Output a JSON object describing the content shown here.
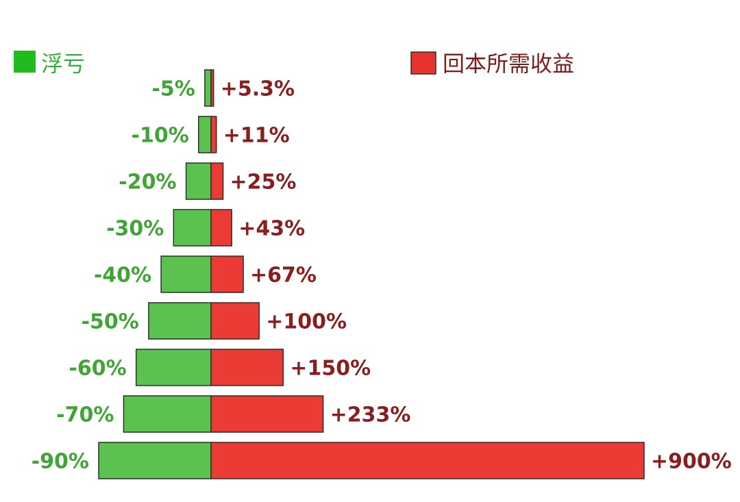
{
  "legend": {
    "loss_label": "浮亏",
    "gain_label": "回本所需收益"
  },
  "colors": {
    "loss_fill": "#5cc24f",
    "gain_fill": "#ec3b34",
    "bar_stroke": "#2d2d2d",
    "loss_text": "#3fa535",
    "gain_text": "#8a1e1e",
    "loss_legend_text": "#32b13a",
    "gain_legend_text": "#7a1c1c",
    "loss_swatch": "#22bb1e",
    "gain_swatch": "#e8322e"
  },
  "chart_data": {
    "type": "bar",
    "orientation": "horizontal-diverging",
    "title": "",
    "xlabel": "",
    "ylabel": "",
    "grid": false,
    "legend_position": "top",
    "categories": [
      "-5%",
      "-10%",
      "-20%",
      "-30%",
      "-40%",
      "-50%",
      "-60%",
      "-70%",
      "-90%"
    ],
    "series": [
      {
        "name": "浮亏",
        "values": [
          -5,
          -10,
          -20,
          -30,
          -40,
          -50,
          -60,
          -70,
          -90
        ],
        "labels": [
          "-5%",
          "-10%",
          "-20%",
          "-30%",
          "-40%",
          "-50%",
          "-60%",
          "-70%",
          "-90%"
        ]
      },
      {
        "name": "回本所需收益",
        "values": [
          5.3,
          11,
          25,
          43,
          67,
          100,
          150,
          233,
          900
        ],
        "labels": [
          "+5.3%",
          "+11%",
          "+25%",
          "+43%",
          "+67%",
          "+100%",
          "+150%",
          "+233%",
          "+900%"
        ]
      }
    ]
  }
}
